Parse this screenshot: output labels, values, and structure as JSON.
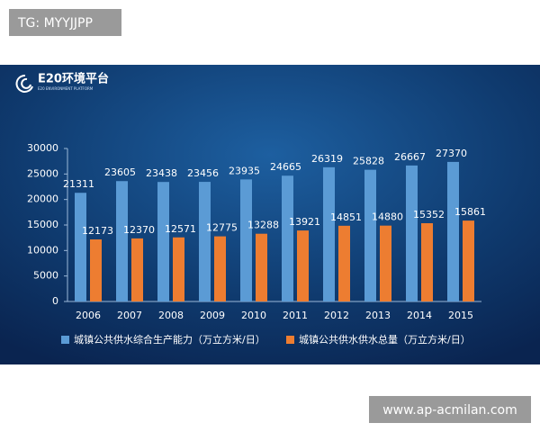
{
  "watermark": "TG: MYYJJPP",
  "logo": {
    "name": "E20环境平台",
    "subtitle": "E20 ENVIRONMENT PLATFORM"
  },
  "footer_url": "www.ap-acmilan.com",
  "chart_data": {
    "type": "bar",
    "categories": [
      "2006",
      "2007",
      "2008",
      "2009",
      "2010",
      "2011",
      "2012",
      "2013",
      "2014",
      "2015"
    ],
    "series": [
      {
        "name": "城镇公共供水综合生产能力（万立方米/日）",
        "color": "#5b9bd5",
        "values": [
          21311,
          23605,
          23438,
          23456,
          23935,
          24665,
          26319,
          25828,
          26667,
          27370
        ]
      },
      {
        "name": "城镇公共供水供水总量（万立方米/日）",
        "color": "#ed7d31",
        "values": [
          12173,
          12370,
          12571,
          12775,
          13288,
          13921,
          14851,
          14880,
          15352,
          15861
        ]
      }
    ],
    "ylim": [
      0,
      30000
    ],
    "yticks": [
      0,
      5000,
      10000,
      15000,
      20000,
      25000,
      30000
    ],
    "grid": false,
    "legend": "bottom"
  }
}
